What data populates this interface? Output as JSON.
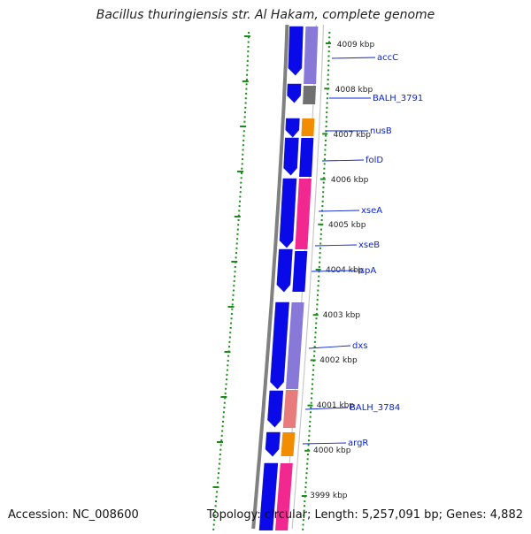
{
  "title": "Bacillus thuringiensis str. Al Hakam, complete genome",
  "footer": {
    "accession": "Accession: NC_008600",
    "stats": "Topology: circular; Length: 5,257,091 bp; Genes: 4,882"
  },
  "colors": {
    "forward_cds": "#0a0ae8",
    "backbone": "#808080",
    "ticks_green": "#1a8c1a",
    "label_blue": "#0b24d6",
    "orange": "#f28c00",
    "magenta": "#f02890",
    "pink": "#e87b7b",
    "lavender": "#8878d8",
    "gray_block": "#707070"
  },
  "kbp_labels": [
    "4009 kbp",
    "4008 kbp",
    "4007 kbp",
    "4006 kbp",
    "4005 kbp",
    "4004 kbp",
    "4003 kbp",
    "4002 kbp",
    "4001 kbp",
    "4000 kbp",
    "3999 kbp"
  ],
  "genes": [
    "accC",
    "BALH_3791",
    "nusB",
    "folD",
    "xseA",
    "xseB",
    "ispA",
    "dxs",
    "BALH_3784",
    "argR"
  ]
}
